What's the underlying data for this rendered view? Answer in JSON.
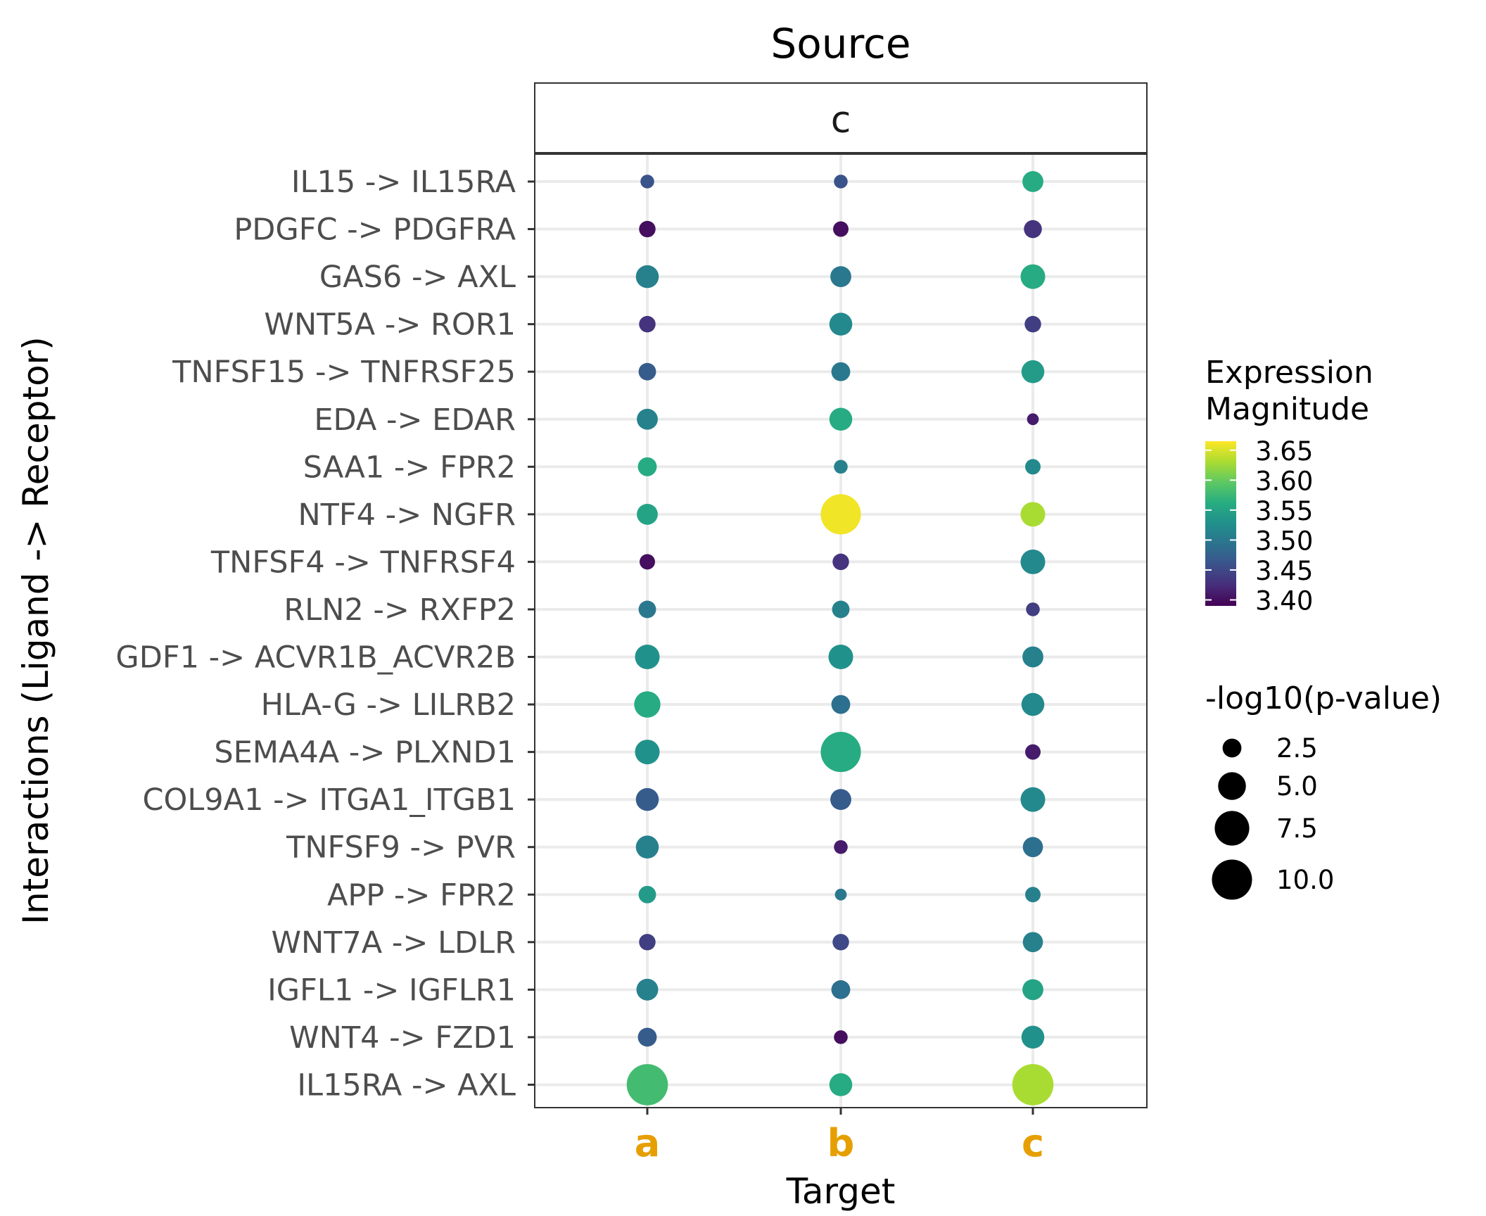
{
  "chart_data": {
    "type": "scatter",
    "title": "Source",
    "facet_label": "c",
    "xlabel": "Target",
    "ylabel": "Interactions (Ligand -> Receptor)",
    "x_categories": [
      "a",
      "b",
      "c"
    ],
    "x_tick_color": "#E69F00",
    "y_categories": [
      "IL15 -> IL15RA",
      "PDGFC -> PDGFRA",
      "GAS6 -> AXL",
      "WNT5A -> ROR1",
      "TNFSF15 -> TNFRSF25",
      "EDA -> EDAR",
      "SAA1 -> FPR2",
      "NTF4 -> NGFR",
      "TNFSF4 -> TNFRSF4",
      "RLN2 -> RXFP2",
      "GDF1 -> ACVR1B_ACVR2B",
      "HLA-G -> LILRB2",
      "SEMA4A -> PLXND1",
      "COL9A1 -> ITGA1_ITGB1",
      "TNFSF9 -> PVR",
      "APP -> FPR2",
      "WNT7A -> LDLR",
      "IGFL1 -> IGFLR1",
      "WNT4 -> FZD1",
      "IL15RA -> AXL"
    ],
    "color_legend": {
      "title": "Expression\nMagnitude",
      "range": [
        3.39,
        3.665
      ],
      "ticks": [
        "3.65",
        "3.60",
        "3.55",
        "3.50",
        "3.45",
        "3.40"
      ],
      "palette": "viridis"
    },
    "size_legend": {
      "title": "-log10(p-value)",
      "range": [
        0.8,
        11
      ],
      "ticks": [
        "2.5",
        "5.0",
        "7.5",
        "10.0"
      ]
    },
    "grid": true,
    "points": [
      {
        "x": "a",
        "y": "IL15 -> IL15RA",
        "magnitude": 3.46,
        "neglog10p": 1.5
      },
      {
        "x": "b",
        "y": "IL15 -> IL15RA",
        "magnitude": 3.46,
        "neglog10p": 1.5
      },
      {
        "x": "c",
        "y": "IL15 -> IL15RA",
        "magnitude": 3.56,
        "neglog10p": 3.0
      },
      {
        "x": "a",
        "y": "PDGFC -> PDGFRA",
        "magnitude": 3.4,
        "neglog10p": 2.0
      },
      {
        "x": "b",
        "y": "PDGFC -> PDGFRA",
        "magnitude": 3.4,
        "neglog10p": 1.8
      },
      {
        "x": "c",
        "y": "PDGFC -> PDGFRA",
        "magnitude": 3.43,
        "neglog10p": 2.3
      },
      {
        "x": "a",
        "y": "GAS6 -> AXL",
        "magnitude": 3.51,
        "neglog10p": 3.5
      },
      {
        "x": "b",
        "y": "GAS6 -> AXL",
        "magnitude": 3.5,
        "neglog10p": 3.0
      },
      {
        "x": "c",
        "y": "GAS6 -> AXL",
        "magnitude": 3.56,
        "neglog10p": 4.0
      },
      {
        "x": "a",
        "y": "WNT5A -> ROR1",
        "magnitude": 3.43,
        "neglog10p": 2.0
      },
      {
        "x": "b",
        "y": "WNT5A -> ROR1",
        "magnitude": 3.52,
        "neglog10p": 3.5
      },
      {
        "x": "c",
        "y": "WNT5A -> ROR1",
        "magnitude": 3.44,
        "neglog10p": 2.0
      },
      {
        "x": "a",
        "y": "TNFSF15 -> TNFRSF25",
        "magnitude": 3.47,
        "neglog10p": 2.2
      },
      {
        "x": "b",
        "y": "TNFSF15 -> TNFRSF25",
        "magnitude": 3.5,
        "neglog10p": 2.5
      },
      {
        "x": "c",
        "y": "TNFSF15 -> TNFRSF25",
        "magnitude": 3.54,
        "neglog10p": 3.5
      },
      {
        "x": "a",
        "y": "EDA -> EDAR",
        "magnitude": 3.51,
        "neglog10p": 3.0
      },
      {
        "x": "b",
        "y": "EDA -> EDAR",
        "magnitude": 3.56,
        "neglog10p": 3.5
      },
      {
        "x": "c",
        "y": "EDA -> EDAR",
        "magnitude": 3.41,
        "neglog10p": 1.2
      },
      {
        "x": "a",
        "y": "SAA1 -> FPR2",
        "magnitude": 3.56,
        "neglog10p": 2.5
      },
      {
        "x": "b",
        "y": "SAA1 -> FPR2",
        "magnitude": 3.51,
        "neglog10p": 1.5
      },
      {
        "x": "c",
        "y": "SAA1 -> FPR2",
        "magnitude": 3.52,
        "neglog10p": 1.8
      },
      {
        "x": "a",
        "y": "NTF4 -> NGFR",
        "magnitude": 3.55,
        "neglog10p": 3.0
      },
      {
        "x": "b",
        "y": "NTF4 -> NGFR",
        "magnitude": 3.66,
        "neglog10p": 10.0
      },
      {
        "x": "c",
        "y": "NTF4 -> NGFR",
        "magnitude": 3.63,
        "neglog10p": 4.0
      },
      {
        "x": "a",
        "y": "TNFSF4 -> TNFRSF4",
        "magnitude": 3.4,
        "neglog10p": 1.8
      },
      {
        "x": "b",
        "y": "TNFSF4 -> TNFRSF4",
        "magnitude": 3.43,
        "neglog10p": 2.0
      },
      {
        "x": "c",
        "y": "TNFSF4 -> TNFRSF4",
        "magnitude": 3.52,
        "neglog10p": 4.0
      },
      {
        "x": "a",
        "y": "RLN2 -> RXFP2",
        "magnitude": 3.5,
        "neglog10p": 2.2
      },
      {
        "x": "b",
        "y": "RLN2 -> RXFP2",
        "magnitude": 3.51,
        "neglog10p": 2.2
      },
      {
        "x": "c",
        "y": "RLN2 -> RXFP2",
        "magnitude": 3.44,
        "neglog10p": 1.5
      },
      {
        "x": "a",
        "y": "GDF1 -> ACVR1B_ACVR2B",
        "magnitude": 3.53,
        "neglog10p": 4.0
      },
      {
        "x": "b",
        "y": "GDF1 -> ACVR1B_ACVR2B",
        "magnitude": 3.53,
        "neglog10p": 4.0
      },
      {
        "x": "c",
        "y": "GDF1 -> ACVR1B_ACVR2B",
        "magnitude": 3.51,
        "neglog10p": 3.0
      },
      {
        "x": "a",
        "y": "HLA-G -> LILRB2",
        "magnitude": 3.56,
        "neglog10p": 4.5
      },
      {
        "x": "b",
        "y": "HLA-G -> LILRB2",
        "magnitude": 3.49,
        "neglog10p": 2.5
      },
      {
        "x": "c",
        "y": "HLA-G -> LILRB2",
        "magnitude": 3.52,
        "neglog10p": 3.5
      },
      {
        "x": "a",
        "y": "SEMA4A -> PLXND1",
        "magnitude": 3.53,
        "neglog10p": 4.0
      },
      {
        "x": "b",
        "y": "SEMA4A -> PLXND1",
        "magnitude": 3.56,
        "neglog10p": 10.0
      },
      {
        "x": "c",
        "y": "SEMA4A -> PLXND1",
        "magnitude": 3.41,
        "neglog10p": 1.8
      },
      {
        "x": "a",
        "y": "COL9A1 -> ITGA1_ITGB1",
        "magnitude": 3.47,
        "neglog10p": 3.5
      },
      {
        "x": "b",
        "y": "COL9A1 -> ITGA1_ITGB1",
        "magnitude": 3.47,
        "neglog10p": 3.0
      },
      {
        "x": "c",
        "y": "COL9A1 -> ITGA1_ITGB1",
        "magnitude": 3.52,
        "neglog10p": 4.0
      },
      {
        "x": "a",
        "y": "TNFSF9 -> PVR",
        "magnitude": 3.51,
        "neglog10p": 3.5
      },
      {
        "x": "b",
        "y": "TNFSF9 -> PVR",
        "magnitude": 3.41,
        "neglog10p": 1.5
      },
      {
        "x": "c",
        "y": "TNFSF9 -> PVR",
        "magnitude": 3.49,
        "neglog10p": 2.8
      },
      {
        "x": "a",
        "y": "APP -> FPR2",
        "magnitude": 3.54,
        "neglog10p": 2.2
      },
      {
        "x": "b",
        "y": "APP -> FPR2",
        "magnitude": 3.5,
        "neglog10p": 1.2
      },
      {
        "x": "c",
        "y": "APP -> FPR2",
        "magnitude": 3.51,
        "neglog10p": 1.8
      },
      {
        "x": "a",
        "y": "WNT7A -> LDLR",
        "magnitude": 3.44,
        "neglog10p": 2.0
      },
      {
        "x": "b",
        "y": "WNT7A -> LDLR",
        "magnitude": 3.45,
        "neglog10p": 2.0
      },
      {
        "x": "c",
        "y": "WNT7A -> LDLR",
        "magnitude": 3.51,
        "neglog10p": 2.8
      },
      {
        "x": "a",
        "y": "IGFL1 -> IGFLR1",
        "magnitude": 3.51,
        "neglog10p": 3.2
      },
      {
        "x": "b",
        "y": "IGFL1 -> IGFLR1",
        "magnitude": 3.49,
        "neglog10p": 2.5
      },
      {
        "x": "c",
        "y": "IGFL1 -> IGFLR1",
        "magnitude": 3.55,
        "neglog10p": 3.0
      },
      {
        "x": "a",
        "y": "WNT4 -> FZD1",
        "magnitude": 3.47,
        "neglog10p": 2.5
      },
      {
        "x": "b",
        "y": "WNT4 -> FZD1",
        "magnitude": 3.4,
        "neglog10p": 1.5
      },
      {
        "x": "c",
        "y": "WNT4 -> FZD1",
        "magnitude": 3.53,
        "neglog10p": 3.5
      },
      {
        "x": "a",
        "y": "IL15RA -> AXL",
        "magnitude": 3.58,
        "neglog10p": 10.5
      },
      {
        "x": "b",
        "y": "IL15RA -> AXL",
        "magnitude": 3.56,
        "neglog10p": 3.5
      },
      {
        "x": "c",
        "y": "IL15RA -> AXL",
        "magnitude": 3.63,
        "neglog10p": 10.5
      }
    ]
  }
}
